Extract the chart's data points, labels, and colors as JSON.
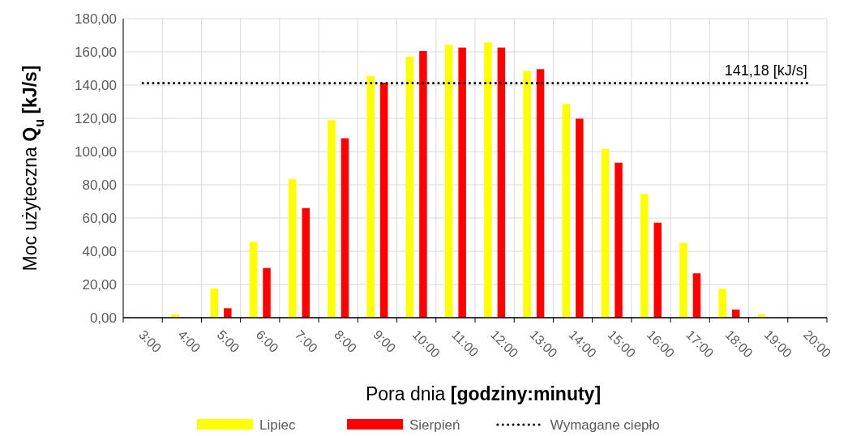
{
  "chart_data": {
    "type": "bar",
    "xlabel": "Pora dnia [godziny:minuty]",
    "ylabel": "Moc użyteczna Q$_{u}$ [kJ/s]",
    "categories": [
      "3:00",
      "4:00",
      "5:00",
      "6:00",
      "7:00",
      "8:00",
      "9:00",
      "10:00",
      "11:00",
      "12:00",
      "13:00",
      "14:00",
      "15:00",
      "16:00",
      "17:00",
      "18:00",
      "19:00",
      "20:00"
    ],
    "series": [
      {
        "name": "Lipiec",
        "color": "#ffff00",
        "values": [
          0,
          2.1,
          17.6,
          45.7,
          83.3,
          118.9,
          145.5,
          157.2,
          164.2,
          165.7,
          148.5,
          128.6,
          101.6,
          74.5,
          45.0,
          17.4,
          2.0,
          0
        ]
      },
      {
        "name": "Sierpień",
        "color": "#ff0000",
        "values": [
          0,
          0,
          5.7,
          29.9,
          66.0,
          108.0,
          141.5,
          160.5,
          162.6,
          162.6,
          149.6,
          119.8,
          93.3,
          57.2,
          26.7,
          4.9,
          0,
          0
        ]
      },
      {
        "name": "Wymagane ciepło",
        "type": "line",
        "color": "#000000",
        "line_style": "dotted",
        "marker": "none",
        "values": [
          141.18,
          141.18,
          141.18,
          141.18,
          141.18,
          141.18,
          141.18,
          141.18,
          141.18,
          141.18,
          141.18,
          141.18,
          141.18,
          141.18,
          141.18,
          141.18,
          141.18,
          141.18
        ]
      }
    ],
    "ylim": [
      0,
      180
    ],
    "yticks": [
      {
        "value": 0,
        "label": "0,00"
      },
      {
        "value": 20,
        "label": "20,00"
      },
      {
        "value": 40,
        "label": "40,00"
      },
      {
        "value": 60,
        "label": "60,00"
      },
      {
        "value": 80,
        "label": "80,00"
      },
      {
        "value": 100,
        "label": "100,00"
      },
      {
        "value": 120,
        "label": "120,00"
      },
      {
        "value": 140,
        "label": "140,00"
      },
      {
        "value": 160,
        "label": "160,00"
      },
      {
        "value": 180,
        "label": "180,00"
      }
    ],
    "annotations": [
      {
        "text": "141,18 [kJ/s]",
        "x": "20:00",
        "y": 141.18
      }
    ],
    "grid": true,
    "legend": "bottom"
  }
}
